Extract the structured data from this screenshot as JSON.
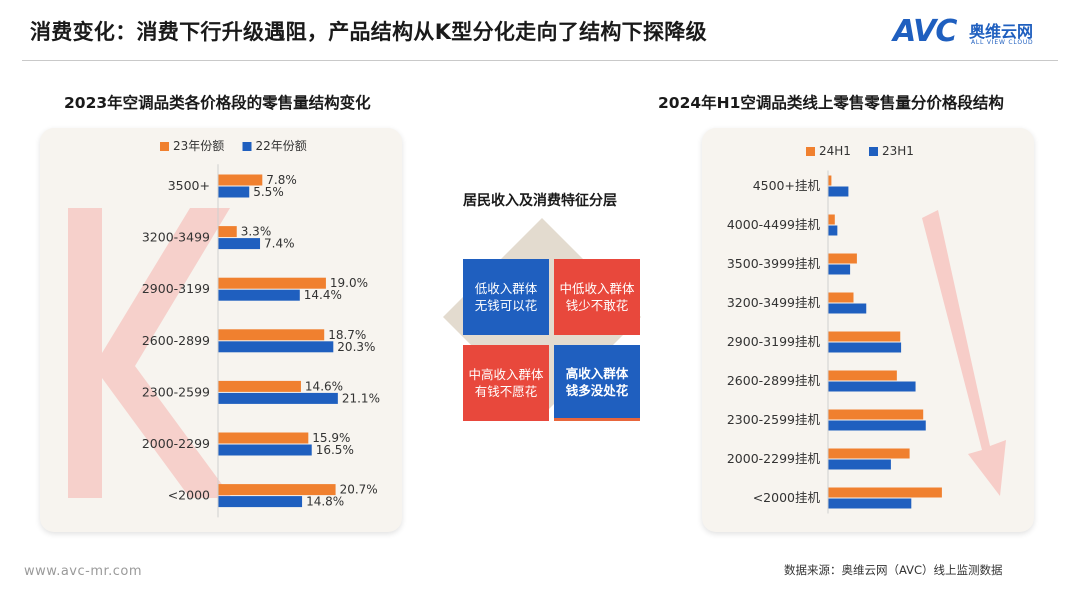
{
  "title": "消费变化：消费下行升级遇阻，产品结构从K型分化走向了结构下探降级",
  "logo": {
    "mark": "AVC",
    "cn": "奥维云网",
    "sub": "ALL VIEW CLOUD"
  },
  "quad": {
    "title": "居民收入及消费特征分层",
    "cells": [
      {
        "line1": "低收入群体",
        "line2": "无钱可以花"
      },
      {
        "line1": "中低收入群体",
        "line2": "钱少不敢花"
      },
      {
        "line1": "中高收入群体",
        "line2": "有钱不愿花"
      },
      {
        "line1": "高收入群体",
        "line2": "钱多没处花"
      }
    ]
  },
  "footer": {
    "url": "www.avc-mr.com",
    "source": "数据来源：奥维云网（AVC）线上监测数据"
  },
  "colors": {
    "orange": "#f0802f",
    "blue": "#1f5fbf",
    "red": "#e8483c",
    "panel": "#f7f4ef"
  },
  "chart_data": [
    {
      "type": "bar",
      "orientation": "horizontal",
      "title": "2023年空调品类各价格段的零售量结构变化",
      "categories": [
        "3500+",
        "3200-3499",
        "2900-3199",
        "2600-2899",
        "2300-2599",
        "2000-2299",
        "<2000"
      ],
      "series": [
        {
          "name": "23年份额",
          "color": "#f0802f",
          "values": [
            7.8,
            3.3,
            19.0,
            18.7,
            14.6,
            15.9,
            20.7
          ],
          "labels": [
            "7.8%",
            "3.3%",
            "19.0%",
            "18.7%",
            "14.6%",
            "15.9%",
            "20.7%"
          ]
        },
        {
          "name": "22年份额",
          "color": "#1f5fbf",
          "values": [
            5.5,
            7.4,
            14.4,
            20.3,
            21.1,
            16.5,
            14.8
          ],
          "labels": [
            "5.5%",
            "7.4%",
            "14.4%",
            "20.3%",
            "21.1%",
            "16.5%",
            "14.8%"
          ]
        }
      ],
      "xlim": [
        0,
        25
      ],
      "legend": "top",
      "annotation": "K",
      "grid": false
    },
    {
      "type": "bar",
      "orientation": "horizontal",
      "title": "2024年H1空调品类线上零售零售量分价格段结构",
      "categories": [
        "4500+挂机",
        "4000-4499挂机",
        "3500-3999挂机",
        "3200-3499挂机",
        "2900-3199挂机",
        "2600-2899挂机",
        "2300-2599挂机",
        "2000-2299挂机",
        "<2000挂机"
      ],
      "series": [
        {
          "name": "24H1",
          "color": "#f0802f",
          "values": [
            0.4,
            0.8,
            3.4,
            3.0,
            8.5,
            8.1,
            11.2,
            9.6,
            13.4
          ]
        },
        {
          "name": "23H1",
          "color": "#1f5fbf",
          "values": [
            2.4,
            1.1,
            2.6,
            4.5,
            8.6,
            10.3,
            11.5,
            7.4,
            9.8
          ]
        }
      ],
      "xlim": [
        0,
        20
      ],
      "legend": "top",
      "annotation": "down-arrow",
      "grid": false
    }
  ]
}
